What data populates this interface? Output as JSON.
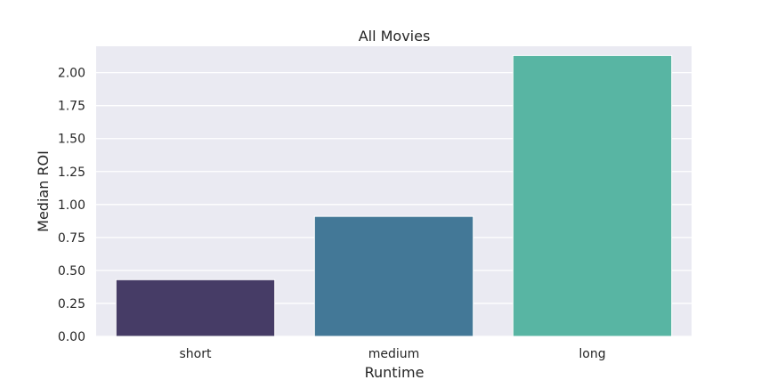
{
  "chart_data": {
    "type": "bar",
    "title": "All Movies",
    "xlabel": "Runtime",
    "ylabel": "Median ROI",
    "categories": [
      "short",
      "medium",
      "long"
    ],
    "values": [
      0.43,
      0.91,
      2.13
    ],
    "ylim": [
      0,
      2.2
    ],
    "yticks": [
      0.0,
      0.25,
      0.5,
      0.75,
      1.0,
      1.25,
      1.5,
      1.75,
      2.0
    ],
    "ytick_labels": [
      "0.00",
      "0.25",
      "0.50",
      "0.75",
      "1.00",
      "1.25",
      "1.50",
      "1.75",
      "2.00"
    ],
    "colors": [
      "#463c66",
      "#437897",
      "#58b5a3"
    ],
    "plot_background": "#eaeaf2",
    "grid": true,
    "legend": false
  }
}
